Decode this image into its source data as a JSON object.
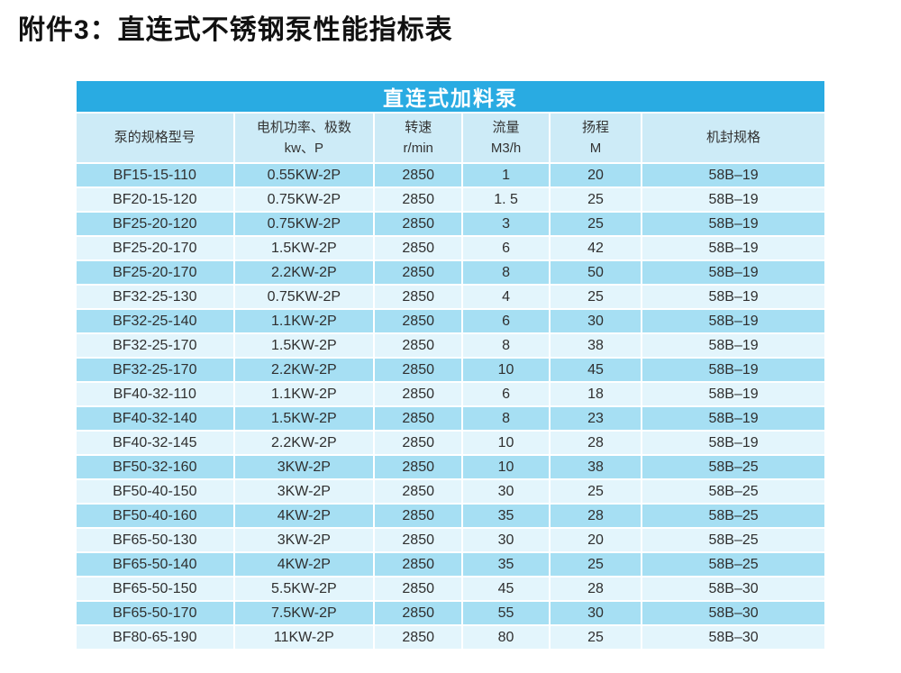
{
  "page": {
    "title": "附件3：直连式不锈钢泵性能指标表"
  },
  "table": {
    "banner": "直连式加料泵",
    "columns": [
      {
        "id": "model",
        "label_lines": [
          "泵的规格型号"
        ]
      },
      {
        "id": "power",
        "label_lines": [
          "电机功率、极数",
          "kw、P"
        ]
      },
      {
        "id": "speed",
        "label_lines": [
          "转速",
          "r/min"
        ]
      },
      {
        "id": "flow",
        "label_lines": [
          "流量",
          "M3/h"
        ]
      },
      {
        "id": "head",
        "label_lines": [
          "扬程",
          "M"
        ]
      },
      {
        "id": "seal",
        "label_lines": [
          "机封规格"
        ]
      }
    ],
    "column_widths_pct": [
      21.1,
      18.7,
      11.8,
      11.6,
      12.3,
      24.5
    ],
    "rows": [
      [
        "BF15-15-110",
        "0.55KW-2P",
        "2850",
        "1",
        "20",
        "58B–19"
      ],
      [
        "BF20-15-120",
        "0.75KW-2P",
        "2850",
        "1. 5",
        "25",
        "58B–19"
      ],
      [
        "BF25-20-120",
        "0.75KW-2P",
        "2850",
        "3",
        "25",
        "58B–19"
      ],
      [
        "BF25-20-170",
        "1.5KW-2P",
        "2850",
        "6",
        "42",
        "58B–19"
      ],
      [
        "BF25-20-170",
        "2.2KW-2P",
        "2850",
        "8",
        "50",
        "58B–19"
      ],
      [
        "BF32-25-130",
        "0.75KW-2P",
        "2850",
        "4",
        "25",
        "58B–19"
      ],
      [
        "BF32-25-140",
        "1.1KW-2P",
        "2850",
        "6",
        "30",
        "58B–19"
      ],
      [
        "BF32-25-170",
        "1.5KW-2P",
        "2850",
        "8",
        "38",
        "58B–19"
      ],
      [
        "BF32-25-170",
        "2.2KW-2P",
        "2850",
        "10",
        "45",
        "58B–19"
      ],
      [
        "BF40-32-110",
        "1.1KW-2P",
        "2850",
        "6",
        "18",
        "58B–19"
      ],
      [
        "BF40-32-140",
        "1.5KW-2P",
        "2850",
        "8",
        "23",
        "58B–19"
      ],
      [
        "BF40-32-145",
        "2.2KW-2P",
        "2850",
        "10",
        "28",
        "58B–19"
      ],
      [
        "BF50-32-160",
        "3KW-2P",
        "2850",
        "10",
        "38",
        "58B–25"
      ],
      [
        "BF50-40-150",
        "3KW-2P",
        "2850",
        "30",
        "25",
        "58B–25"
      ],
      [
        "BF50-40-160",
        "4KW-2P",
        "2850",
        "35",
        "28",
        "58B–25"
      ],
      [
        "BF65-50-130",
        "3KW-2P",
        "2850",
        "30",
        "20",
        "58B–25"
      ],
      [
        "BF65-50-140",
        "4KW-2P",
        "2850",
        "35",
        "25",
        "58B–25"
      ],
      [
        "BF65-50-150",
        "5.5KW-2P",
        "2850",
        "45",
        "28",
        "58B–30"
      ],
      [
        "BF65-50-170",
        "7.5KW-2P",
        "2850",
        "55",
        "30",
        "58B–30"
      ],
      [
        "BF80-65-190",
        "11KW-2P",
        "2850",
        "80",
        "25",
        "58B–30"
      ]
    ]
  },
  "colors": {
    "banner_bg": "#29abe2",
    "banner_text": "#ffffff",
    "header_bg": "#cdebf7",
    "row_odd_bg": "#a6dff3",
    "row_even_bg": "#e3f5fc",
    "cell_border": "#ffffff",
    "text": "#2b2b2b"
  }
}
